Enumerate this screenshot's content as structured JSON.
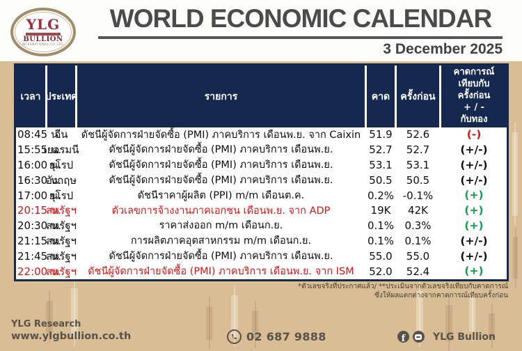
{
  "header": {
    "logo": {
      "name": "YLG",
      "subtitle": "BULLION",
      "tagline": "INTERNATIONAL CO.,LTD."
    },
    "title": "WORLD ECONOMIC CALENDAR",
    "date": "3 December 2025"
  },
  "table": {
    "columns": [
      "เวลา",
      "ประเทศ",
      "รายการ",
      "คาด",
      "ครั้งก่อน",
      "คาดการณ์\nเทียบกับ\nครั้งก่อน\n+ / -\nกับทอง"
    ],
    "rows": [
      {
        "time": "08:45 น.",
        "country": "จีน",
        "event": "ดัชนีผู้จัดการฝ่ายจัดซื้อ (PMI) ภาคบริการ เดือนพ.ย. จาก Caixin",
        "forecast": "51.9",
        "previous": "52.6",
        "outlook": "(-)",
        "outlook_color": "red",
        "highlight": false
      },
      {
        "time": "15:55 น.",
        "country": "เยอรมนี",
        "event": "ดัชนีผู้จัดการฝ่ายจัดซื้อ (PMI) ภาคบริการ เดือนพ.ย.",
        "forecast": "52.7",
        "previous": "52.7",
        "outlook": "(+/-)",
        "outlook_color": "dark",
        "highlight": false
      },
      {
        "time": "16:00 น.",
        "country": "ยุโรป",
        "event": "ดัชนีผู้จัดการฝ่ายจัดซื้อ (PMI) ภาคบริการ เดือนพ.ย.",
        "forecast": "53.1",
        "previous": "53.1",
        "outlook": "(+/-)",
        "outlook_color": "dark",
        "highlight": false
      },
      {
        "time": "16:30 น.",
        "country": "อังกฤษ",
        "event": "ดัชนีผู้จัดการฝ่ายจัดซื้อ (PMI) ภาคบริการ เดือนพ.ย.",
        "forecast": "50.5",
        "previous": "50.5",
        "outlook": "(+/-)",
        "outlook_color": "dark",
        "highlight": false
      },
      {
        "time": "17:00 น.",
        "country": "ยุโรป",
        "event": "ดัชนีราคาผู้ผลิต (PPI) m/m เดือนต.ค.",
        "forecast": "0.2%",
        "previous": "-0.1%",
        "outlook": "(+)",
        "outlook_color": "green",
        "highlight": false
      },
      {
        "time": "20:15 น.",
        "country": "สหรัฐฯ",
        "event": "ตัวเลขการจ้างงานภาคเอกชน เดือนพ.ย. จาก ADP",
        "forecast": "19K",
        "previous": "42K",
        "outlook": "(+)",
        "outlook_color": "green",
        "highlight": true
      },
      {
        "time": "20:30 น.",
        "country": "สหรัฐฯ",
        "event": "ราคาส่งออก m/m เดือนก.ย.",
        "forecast": "0.1%",
        "previous": "0.3%",
        "outlook": "(+)",
        "outlook_color": "green",
        "highlight": false
      },
      {
        "time": "21:15 น.",
        "country": "สหรัฐฯ",
        "event": "การผลิตภาคอุตสาหกรรม m/m เดือนก.ย.",
        "forecast": "0.1%",
        "previous": "0.1%",
        "outlook": "(+/-)",
        "outlook_color": "dark",
        "highlight": false
      },
      {
        "time": "21:45 น.",
        "country": "สหรัฐฯ",
        "event": "ดัชนีผู้จัดการฝ่ายจัดซื้อ (PMI) ภาคบริการ เดือนพ.ย.",
        "forecast": "55.0",
        "previous": "55.0",
        "outlook": "(+/-)",
        "outlook_color": "dark",
        "highlight": false
      },
      {
        "time": "22:00 น.",
        "country": "สหรัฐฯ",
        "event": "ดัชนีผู้จัดการฝ่ายจัดซื้อ (PMI) ภาคบริการ เดือนพ.ย. จาก ISM",
        "forecast": "52.0",
        "previous": "52.4",
        "outlook": "(+)",
        "outlook_color": "green",
        "highlight": true
      }
    ]
  },
  "footnote": {
    "line1": "*ตัวเลขจริงที่ประกาศแล้ว/ **ประเมินจากตัวเลขจริงเทียบกับคาดการณ์",
    "line2": "ซึ่งให้ผลแตกต่างจากคาดการณ์เทียบครั้งก่อน"
  },
  "footer": {
    "research_label": "YLG Research",
    "website": "www.ylgbullion.co.th",
    "phone": "02 687 9888",
    "social_label": "YLG Bullion",
    "icons": [
      "phone-icon",
      "facebook-icon",
      "chat-bubble-icon"
    ]
  },
  "colors": {
    "table_header_navy": "#15284f",
    "background_tan": "#d9bd94",
    "negative_red": "#e01111",
    "positive_green": "#0ca04a",
    "title_gray": "#4b4b4d",
    "footer_gray": "#57524a"
  }
}
